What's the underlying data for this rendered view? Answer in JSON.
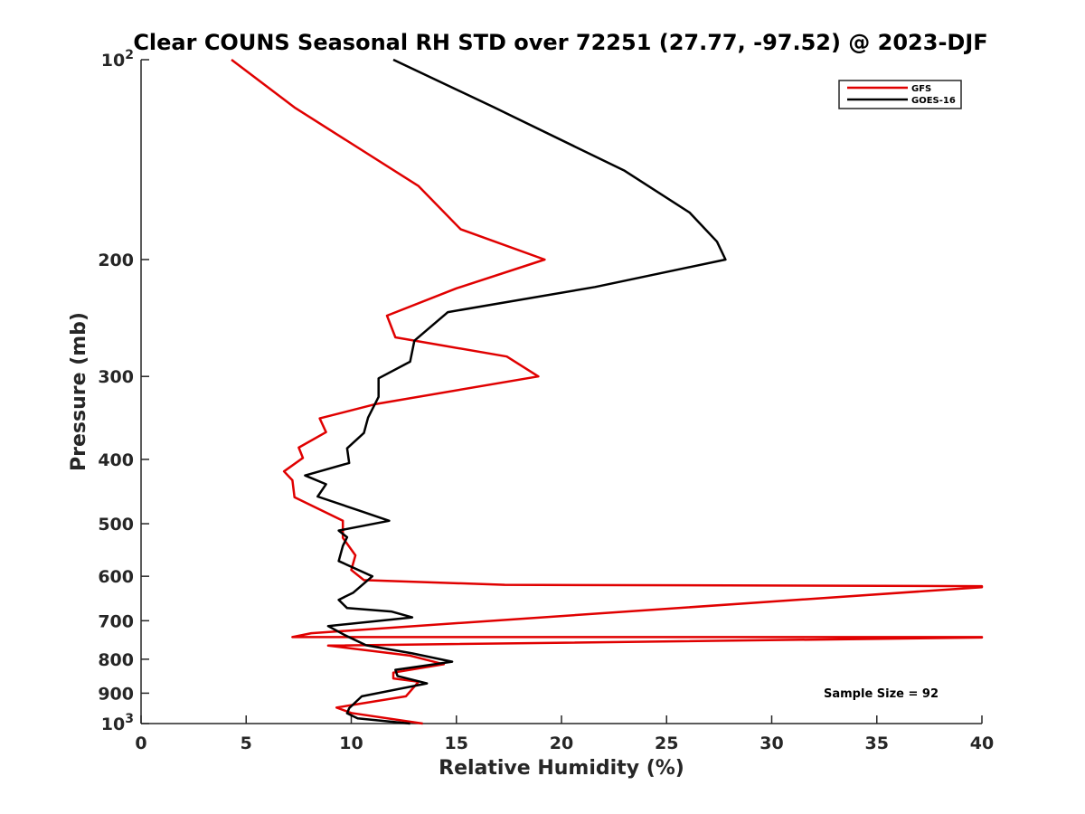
{
  "chart_data": {
    "type": "line",
    "title": "Clear COUNS Seasonal RH STD over 72251 (27.77, -97.52) @ 2023-DJF",
    "xlabel": "Relative Humidity (%)",
    "ylabel": "Pressure (mb)",
    "xlim": [
      0,
      40
    ],
    "ylim": [
      100,
      1000
    ],
    "yscale": "log",
    "y_reversed": true,
    "x_ticks": [
      0,
      5,
      10,
      15,
      20,
      25,
      30,
      35,
      40
    ],
    "x_tick_labels": [
      "0",
      "5",
      "10",
      "15",
      "20",
      "25",
      "30",
      "35",
      "40"
    ],
    "y_ticks": [
      100,
      200,
      300,
      400,
      500,
      600,
      700,
      800,
      900,
      1000
    ],
    "y_tick_labels": [
      {
        "base": "10",
        "exp": "2"
      },
      {
        "base": "200",
        "exp": ""
      },
      {
        "base": "300",
        "exp": ""
      },
      {
        "base": "400",
        "exp": ""
      },
      {
        "base": "500",
        "exp": ""
      },
      {
        "base": "600",
        "exp": ""
      },
      {
        "base": "700",
        "exp": ""
      },
      {
        "base": "800",
        "exp": ""
      },
      {
        "base": "900",
        "exp": ""
      },
      {
        "base": "10",
        "exp": "3"
      }
    ],
    "legend_position": "top-right",
    "annotation": "Sample Size = 92",
    "series": [
      {
        "name": "GFS",
        "color": "#e00000",
        "x": [
          4.3,
          7.3,
          13.2,
          15.2,
          19.2,
          15.0,
          11.7,
          12.1,
          17.4,
          18.9,
          11.2,
          8.5,
          8.8,
          7.5,
          7.7,
          6.8,
          7.2,
          7.3,
          9.6,
          9.6,
          10.2,
          10.0,
          10.6,
          17.3,
          40.0,
          40.0,
          8.1,
          7.2,
          40.0,
          40.0,
          8.9,
          12.8,
          14.4,
          12.0,
          12.0,
          13.2,
          12.6,
          9.3,
          10.0,
          13.4
        ],
        "y": [
          100,
          118,
          155,
          180,
          200,
          221,
          243,
          262,
          280,
          300,
          330,
          347,
          364,
          384,
          398,
          417,
          430,
          456,
          495,
          525,
          558,
          587,
          608,
          618,
          621,
          623,
          731,
          741,
          741,
          742,
          763,
          790,
          814,
          838,
          855,
          865,
          910,
          946,
          964,
          1000
        ]
      },
      {
        "name": "GOES-16",
        "color": "#000000",
        "x": [
          12.0,
          16.8,
          23.0,
          26.1,
          27.4,
          27.8,
          21.6,
          14.6,
          13.0,
          12.8,
          11.3,
          11.3,
          10.8,
          10.6,
          9.8,
          9.9,
          7.8,
          8.8,
          8.4,
          10.4,
          11.8,
          9.4,
          9.8,
          9.6,
          9.4,
          11.0,
          10.1,
          9.4,
          9.8,
          11.9,
          12.9,
          8.9,
          9.7,
          10.7,
          12.9,
          14.8,
          12.1,
          12.2,
          13.6,
          10.5,
          9.9,
          9.8,
          10.3,
          12.8
        ],
        "y": [
          100,
          118,
          147,
          170,
          188,
          200,
          220,
          240,
          265,
          285,
          302,
          322,
          346,
          365,
          385,
          405,
          423,
          436,
          455,
          478,
          495,
          512,
          524,
          540,
          569,
          600,
          635,
          651,
          670,
          678,
          692,
          713,
          736,
          762,
          784,
          807,
          830,
          848,
          870,
          910,
          948,
          965,
          982,
          1000
        ]
      }
    ]
  }
}
